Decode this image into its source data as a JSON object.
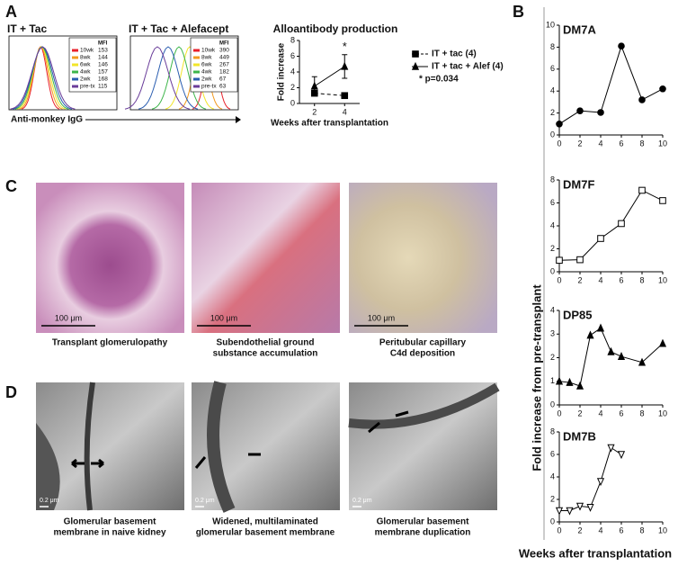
{
  "panel_labels": [
    "A",
    "B",
    "C",
    "D"
  ],
  "flow_panels": [
    {
      "title": "IT + Tac",
      "legend_title": "MFI",
      "entries": [
        {
          "label": "10wk",
          "value": 153,
          "color": "#e8202a"
        },
        {
          "label": "8wk",
          "value": 144,
          "color": "#f39a1e"
        },
        {
          "label": "6wk",
          "value": 146,
          "color": "#f2e52a"
        },
        {
          "label": "4wk",
          "value": 157,
          "color": "#3db54a"
        },
        {
          "label": "2wk",
          "value": 168,
          "color": "#2a5db0"
        },
        {
          "label": "pre-tx",
          "value": 115,
          "color": "#6a3d9a"
        }
      ]
    },
    {
      "title": "IT + Tac + Alefacept",
      "legend_title": "MFI",
      "entries": [
        {
          "label": "10wk",
          "value": 390,
          "color": "#e8202a"
        },
        {
          "label": "8wk",
          "value": 449,
          "color": "#f39a1e"
        },
        {
          "label": "6wk",
          "value": 267,
          "color": "#f2e52a"
        },
        {
          "label": "4wk",
          "value": 182,
          "color": "#3db54a"
        },
        {
          "label": "2wk",
          "value": 67,
          "color": "#2a5db0"
        },
        {
          "label": "pre-tx",
          "value": 63,
          "color": "#6a3d9a"
        }
      ]
    }
  ],
  "flow_xlabel": "Anti-monkey IgG",
  "chart_data": [
    {
      "type": "line",
      "title": "Alloantibody production",
      "xlabel": "Weeks after transplantation",
      "ylabel": "Fold increase",
      "x": [
        2,
        4
      ],
      "xlim": [
        1,
        5
      ],
      "xticks": [
        2,
        4
      ],
      "ylim": [
        0,
        8
      ],
      "yticks": [
        0,
        2,
        4,
        6,
        8
      ],
      "series": [
        {
          "name": "IT + tac (4)",
          "color": "#000000",
          "values": [
            1.3,
            1.0
          ],
          "marker": "square",
          "filled": true,
          "dashed": true
        },
        {
          "name": "IT + tac + Alef (4)",
          "color": "#000000",
          "values": [
            2.2,
            4.7
          ],
          "errors": [
            1.2,
            1.5
          ],
          "marker": "triangle",
          "filled": true,
          "dashed": false,
          "significance": "*"
        }
      ],
      "note": "* p=0.034"
    },
    {
      "type": "line",
      "title": "DM7A",
      "x": [
        0,
        2,
        4,
        6,
        8,
        10
      ],
      "xlim": [
        0,
        10
      ],
      "xticks": [
        0,
        2,
        4,
        6,
        8,
        10
      ],
      "ylim": [
        0,
        10
      ],
      "yticks": [
        0,
        2,
        4,
        6,
        8,
        10
      ],
      "series": [
        {
          "color": "#000000",
          "values": [
            1,
            2.2,
            2.05,
            8.1,
            3.2,
            4.2
          ],
          "marker": "circle",
          "filled": true,
          "dashed": false
        }
      ]
    },
    {
      "type": "line",
      "title": "DM7F",
      "x": [
        0,
        2,
        4,
        6,
        8,
        10
      ],
      "xlim": [
        0,
        10
      ],
      "xticks": [
        0,
        2,
        4,
        6,
        8,
        10
      ],
      "ylim": [
        0,
        8
      ],
      "yticks": [
        0,
        2,
        4,
        6,
        8
      ],
      "series": [
        {
          "color": "#000000",
          "values": [
            1,
            1.05,
            2.9,
            4.2,
            7.1,
            6.2
          ],
          "marker": "square",
          "filled": false,
          "dashed": false
        }
      ]
    },
    {
      "type": "line",
      "title": "DP85",
      "x": [
        0,
        1,
        2,
        3,
        4,
        5,
        6,
        8,
        10
      ],
      "xlim": [
        0,
        10
      ],
      "xticks": [
        0,
        2,
        4,
        6,
        8,
        10
      ],
      "ylim": [
        0,
        4
      ],
      "yticks": [
        0,
        1,
        2,
        3,
        4
      ],
      "series": [
        {
          "color": "#000000",
          "values": [
            1,
            0.95,
            0.8,
            2.95,
            3.25,
            2.25,
            2.05,
            1.8,
            2.6
          ],
          "marker": "triangle",
          "filled": true,
          "dashed": false
        }
      ]
    },
    {
      "type": "line",
      "title": "DM7B",
      "x": [
        0,
        1,
        2,
        3,
        4,
        5,
        6
      ],
      "xlim": [
        0,
        10
      ],
      "xticks": [
        0,
        2,
        4,
        6,
        8,
        10
      ],
      "ylim": [
        0,
        8
      ],
      "yticks": [
        0,
        2,
        4,
        6,
        8
      ],
      "series": [
        {
          "color": "#000000",
          "values": [
            1,
            1,
            1.4,
            1.3,
            3.6,
            6.6,
            6.0
          ],
          "marker": "triangle-down",
          "filled": false,
          "dashed": false
        }
      ]
    }
  ],
  "panel_b_ylabel": "Fold increase from pre-transplant",
  "panel_b_xlabel": "Weeks after transplantation",
  "histology": [
    {
      "scale": "100 μm",
      "caption": [
        "Transplant glomerulopathy"
      ]
    },
    {
      "scale": "100 μm",
      "caption": [
        "Subendothelial ground",
        "substance accumulation"
      ]
    },
    {
      "scale": "100 μm",
      "caption": [
        "Peritubular capillary",
        "C4d deposition"
      ]
    }
  ],
  "em": [
    {
      "scale": "0.2 μm",
      "caption": [
        "Glomerular basement",
        "membrane in naive kidney"
      ]
    },
    {
      "scale": "0.2 μm",
      "caption": [
        "Widened, multilaminated",
        "glomerular basement membrane"
      ]
    },
    {
      "scale": "0.2 μm",
      "caption": [
        "Glomerular basement",
        "membrane duplication"
      ]
    }
  ]
}
